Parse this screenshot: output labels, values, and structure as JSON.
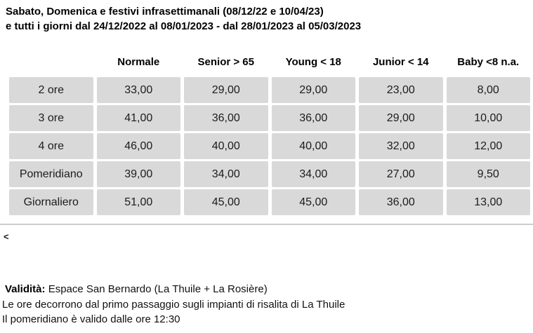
{
  "title": {
    "line1": "Sabato, Domenica e festivi infrasettimanali (08/12/22 e 10/04/23)",
    "line2": "e tutti i giorni dal 24/12/2022 al 08/01/2023 - dal 28/01/2023 al 05/03/2023"
  },
  "table": {
    "columns": [
      "Normale",
      "Senior > 65",
      "Young < 18",
      "Junior < 14",
      "Baby <8 n.a."
    ],
    "rows": [
      {
        "label": "2 ore",
        "values": [
          "33,00",
          "29,00",
          "29,00",
          "23,00",
          "8,00"
        ]
      },
      {
        "label": "3 ore",
        "values": [
          "41,00",
          "36,00",
          "36,00",
          "29,00",
          "10,00"
        ]
      },
      {
        "label": "4 ore",
        "values": [
          "46,00",
          "40,00",
          "40,00",
          "32,00",
          "12,00"
        ]
      },
      {
        "label": "Pomeridiano",
        "values": [
          "39,00",
          "34,00",
          "34,00",
          "27,00",
          "9,50"
        ]
      },
      {
        "label": "Giornaliero",
        "values": [
          "51,00",
          "45,00",
          "45,00",
          "36,00",
          "13,00"
        ]
      }
    ]
  },
  "back_link": "<",
  "notes": {
    "validity_label": "Validità:",
    "validity_text": "Espace San Bernardo (La Thuile + La Rosière)",
    "line2": "Le ore decorrono dal primo passaggio sugli impianti di risalita di La Thuile",
    "line3": "Il pomeridiano è valido dalle ore 12:30"
  },
  "colors": {
    "cell_background": "#d9d9d9",
    "separator": "#cccccc",
    "text": "#1a1a1a"
  }
}
